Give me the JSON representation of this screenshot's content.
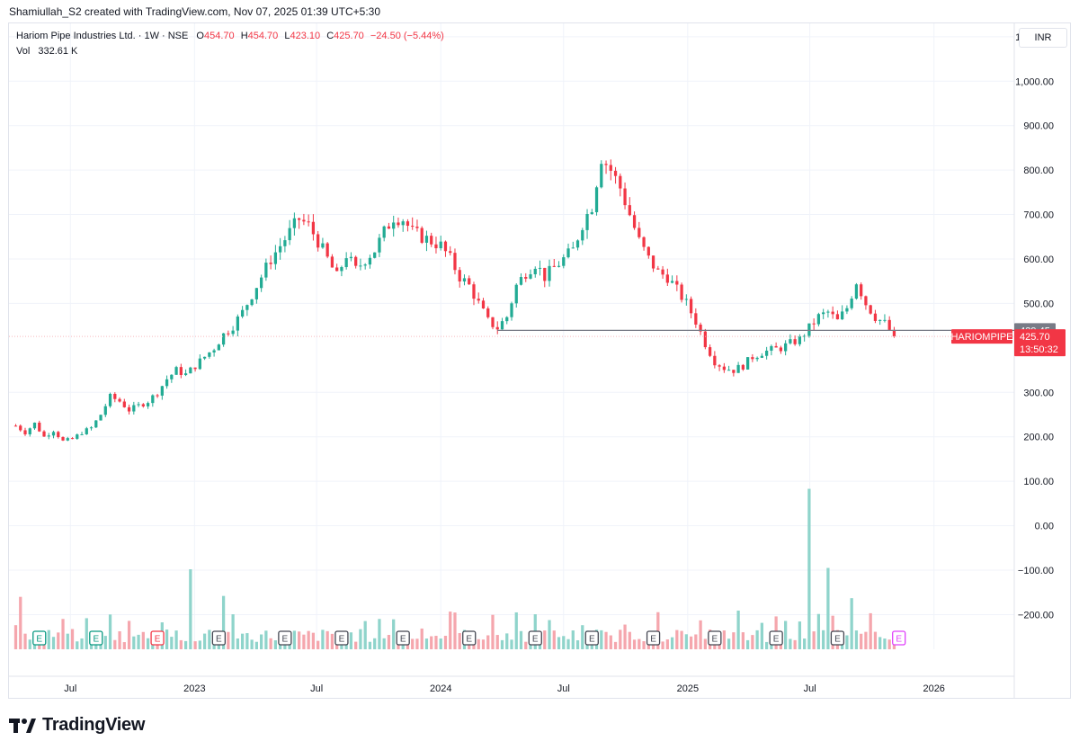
{
  "header": {
    "attribution": "Shamiullah_S2 created with TradingView.com, Nov 07, 2025 01:39 UTC+5:30"
  },
  "legend": {
    "symbol_line": "Hariom Pipe Industries Ltd. · 1W · NSE",
    "o_label": "O",
    "o_value": "454.70",
    "h_label": "H",
    "h_value": "454.70",
    "l_label": "L",
    "l_value": "423.10",
    "c_label": "C",
    "c_value": "425.70",
    "change": "−24.50 (−5.44%)",
    "vol_label": "Vol",
    "vol_value": "332.61 K"
  },
  "currency_button": "INR",
  "branding": {
    "logo_text": "TradingView"
  },
  "colors": {
    "up": "#22ab94",
    "down": "#f23645",
    "vol_up": "#8fd4cb",
    "vol_down": "#f5a6ad",
    "grid": "#f0f3fa",
    "axis_text": "#131722",
    "badge_green": "#089981",
    "badge_red": "#f23645",
    "badge_dark": "#434651",
    "badge_pink": "#e040fb"
  },
  "chart_data": {
    "type": "candlestick",
    "title": "",
    "x_ticks": [
      {
        "label": "Jul",
        "date": "2022-07"
      },
      {
        "label": "2023",
        "date": "2023-01"
      },
      {
        "label": "Jul",
        "date": "2023-07"
      },
      {
        "label": "2024",
        "date": "2024-01"
      },
      {
        "label": "Jul",
        "date": "2024-07"
      },
      {
        "label": "2025",
        "date": "2025-01"
      },
      {
        "label": "Jul",
        "date": "2025-07"
      },
      {
        "label": "2026",
        "date": "2026-01"
      }
    ],
    "y_ticks": [
      "1,100.00",
      "1,000.00",
      "900.00",
      "800.00",
      "700.00",
      "600.00",
      "500.00",
      "300.00",
      "200.00",
      "100.00",
      "0.00",
      "−100.00",
      "−200.00"
    ],
    "ylim": [
      -278,
      1130
    ],
    "x_range": [
      "2022-04-01",
      "2026-04-30"
    ],
    "horizontal_line": {
      "value": 439.45,
      "label": "439.45",
      "from": "2024-03-25"
    },
    "last_price": {
      "symbol": "HARIOMPIPE",
      "value": 425.7,
      "label": "425.70",
      "countdown": "13:50:32"
    },
    "price_path": [
      [
        "2022-04-11",
        225
      ],
      [
        "2022-04-25",
        210
      ],
      [
        "2022-05-09",
        230
      ],
      [
        "2022-05-23",
        200
      ],
      [
        "2022-06-06",
        215
      ],
      [
        "2022-06-20",
        190
      ],
      [
        "2022-07-04",
        195
      ],
      [
        "2022-07-18",
        210
      ],
      [
        "2022-08-01",
        220
      ],
      [
        "2022-08-15",
        250
      ],
      [
        "2022-08-29",
        290
      ],
      [
        "2022-09-12",
        280
      ],
      [
        "2022-09-26",
        260
      ],
      [
        "2022-10-10",
        270
      ],
      [
        "2022-10-24",
        280
      ],
      [
        "2022-11-07",
        300
      ],
      [
        "2022-11-21",
        330
      ],
      [
        "2022-12-05",
        350
      ],
      [
        "2022-12-19",
        340
      ],
      [
        "2023-01-02",
        360
      ],
      [
        "2023-01-16",
        380
      ],
      [
        "2023-01-30",
        400
      ],
      [
        "2023-02-13",
        430
      ],
      [
        "2023-02-27",
        450
      ],
      [
        "2023-03-13",
        480
      ],
      [
        "2023-03-27",
        520
      ],
      [
        "2023-04-10",
        560
      ],
      [
        "2023-04-24",
        600
      ],
      [
        "2023-05-08",
        630
      ],
      [
        "2023-05-22",
        660
      ],
      [
        "2023-06-05",
        690
      ],
      [
        "2023-06-19",
        675
      ],
      [
        "2023-07-03",
        640
      ],
      [
        "2023-07-17",
        600
      ],
      [
        "2023-07-31",
        560
      ],
      [
        "2023-08-14",
        610
      ],
      [
        "2023-08-28",
        575
      ],
      [
        "2023-09-11",
        600
      ],
      [
        "2023-09-25",
        620
      ],
      [
        "2023-10-09",
        660
      ],
      [
        "2023-10-23",
        695
      ],
      [
        "2023-11-06",
        690
      ],
      [
        "2023-11-20",
        660
      ],
      [
        "2023-12-04",
        650
      ],
      [
        "2023-12-18",
        640
      ],
      [
        "2024-01-01",
        630
      ],
      [
        "2024-01-15",
        600
      ],
      [
        "2024-01-29",
        560
      ],
      [
        "2024-02-12",
        540
      ],
      [
        "2024-02-26",
        500
      ],
      [
        "2024-03-11",
        460
      ],
      [
        "2024-03-25",
        445
      ],
      [
        "2024-04-08",
        470
      ],
      [
        "2024-04-22",
        540
      ],
      [
        "2024-05-06",
        570
      ],
      [
        "2024-05-20",
        590
      ],
      [
        "2024-06-03",
        560
      ],
      [
        "2024-06-17",
        580
      ],
      [
        "2024-07-01",
        600
      ],
      [
        "2024-07-15",
        620
      ],
      [
        "2024-07-29",
        680
      ],
      [
        "2024-08-12",
        720
      ],
      [
        "2024-08-26",
        830
      ],
      [
        "2024-09-09",
        800
      ],
      [
        "2024-09-23",
        760
      ],
      [
        "2024-10-07",
        700
      ],
      [
        "2024-10-21",
        640
      ],
      [
        "2024-11-04",
        600
      ],
      [
        "2024-11-18",
        570
      ],
      [
        "2024-12-02",
        560
      ],
      [
        "2024-12-16",
        530
      ],
      [
        "2024-12-30",
        500
      ],
      [
        "2025-01-13",
        460
      ],
      [
        "2025-01-27",
        410
      ],
      [
        "2025-02-10",
        370
      ],
      [
        "2025-02-24",
        355
      ],
      [
        "2025-03-10",
        350
      ],
      [
        "2025-03-24",
        360
      ],
      [
        "2025-04-07",
        380
      ],
      [
        "2025-04-21",
        390
      ],
      [
        "2025-05-05",
        395
      ],
      [
        "2025-05-19",
        400
      ],
      [
        "2025-06-02",
        410
      ],
      [
        "2025-06-16",
        420
      ],
      [
        "2025-06-30",
        445
      ],
      [
        "2025-07-14",
        470
      ],
      [
        "2025-07-28",
        480
      ],
      [
        "2025-08-11",
        460
      ],
      [
        "2025-08-25",
        490
      ],
      [
        "2025-09-08",
        550
      ],
      [
        "2025-09-22",
        500
      ],
      [
        "2025-10-06",
        470
      ],
      [
        "2025-10-20",
        455
      ],
      [
        "2025-11-03",
        425.7
      ]
    ],
    "volume_spikes": [
      {
        "date": "2022-04-18",
        "top": -160
      },
      {
        "date": "2022-12-26",
        "top": -98
      },
      {
        "date": "2023-02-13",
        "top": -158
      },
      {
        "date": "2025-06-30",
        "top": 83
      },
      {
        "date": "2025-07-28",
        "top": -95
      },
      {
        "date": "2025-09-01",
        "top": -163
      }
    ],
    "earnings_markers": [
      {
        "date": "2022-05-16",
        "style": "green"
      },
      {
        "date": "2022-08-08",
        "style": "green"
      },
      {
        "date": "2022-11-07",
        "style": "red"
      },
      {
        "date": "2023-02-06",
        "style": "dark"
      },
      {
        "date": "2023-05-15",
        "style": "dark"
      },
      {
        "date": "2023-08-07",
        "style": "dark"
      },
      {
        "date": "2023-11-06",
        "style": "dark"
      },
      {
        "date": "2024-02-12",
        "style": "dark"
      },
      {
        "date": "2024-05-20",
        "style": "dark"
      },
      {
        "date": "2024-08-12",
        "style": "dark"
      },
      {
        "date": "2024-11-11",
        "style": "dark"
      },
      {
        "date": "2025-02-10",
        "style": "dark"
      },
      {
        "date": "2025-05-12",
        "style": "dark"
      },
      {
        "date": "2025-08-11",
        "style": "dark"
      },
      {
        "date": "2025-11-10",
        "style": "pink"
      }
    ],
    "earnings_label": "E"
  }
}
